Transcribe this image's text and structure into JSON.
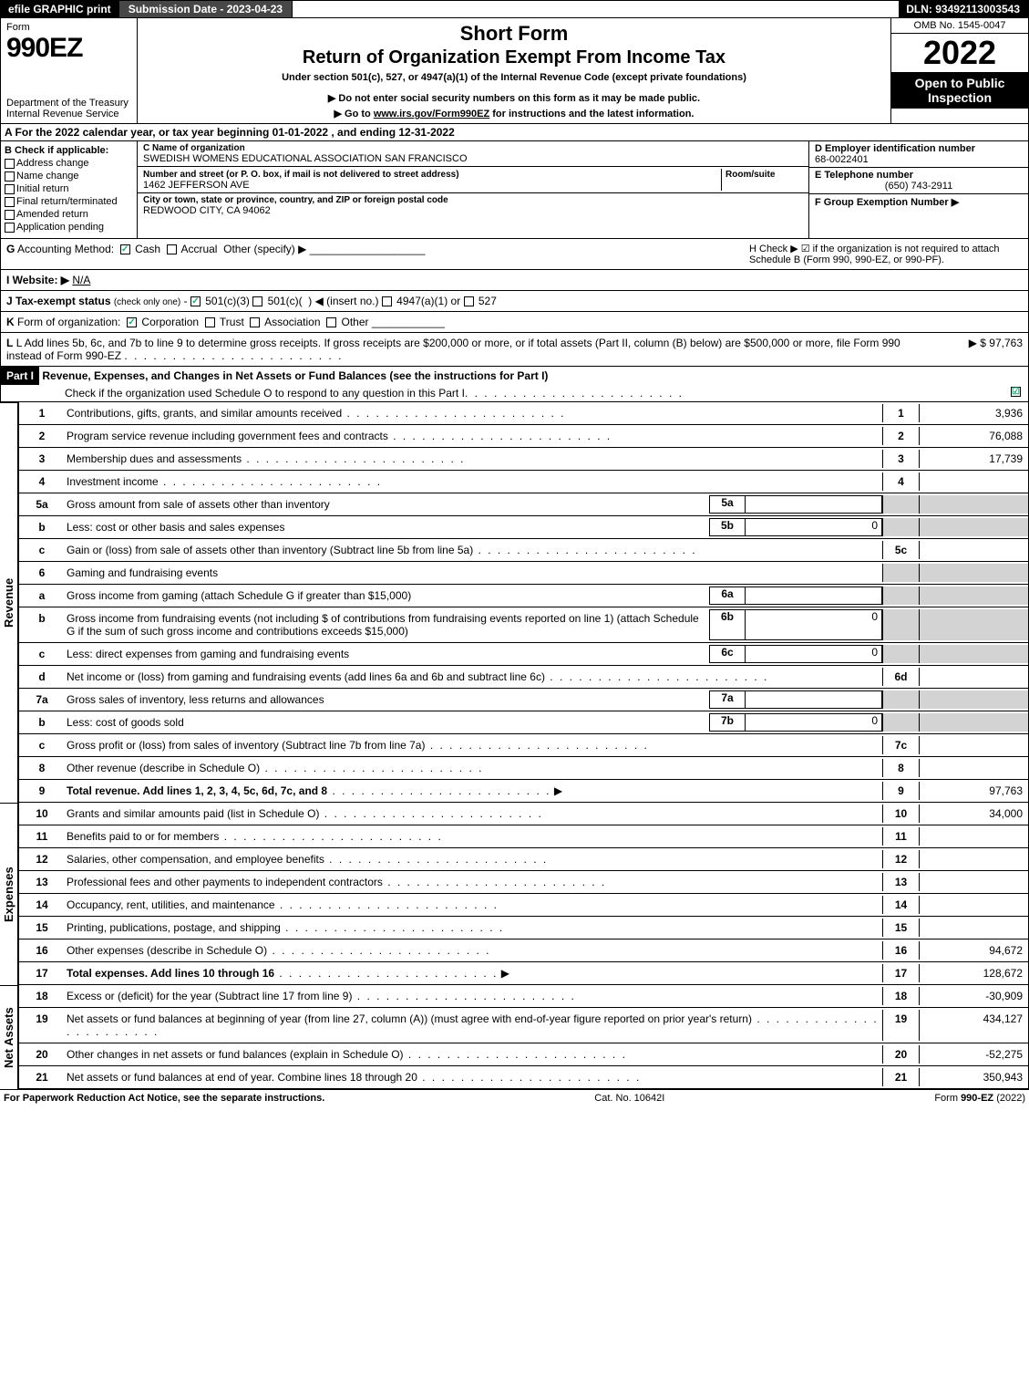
{
  "topbar": {
    "efile": "efile GRAPHIC print",
    "subdate": "Submission Date - 2023-04-23",
    "dln": "DLN: 93492113003543"
  },
  "header": {
    "form_label": "Form",
    "form_number": "990EZ",
    "dept": "Department of the Treasury\nInternal Revenue Service",
    "title": "Short Form",
    "subtitle": "Return of Organization Exempt From Income Tax",
    "under": "Under section 501(c), 527, or 4947(a)(1) of the Internal Revenue Code (except private foundations)",
    "notice1": "▶ Do not enter social security numbers on this form as it may be made public.",
    "notice2": "▶ Go to www.irs.gov/Form990EZ for instructions and the latest information.",
    "omb": "OMB No. 1545-0047",
    "year": "2022",
    "open": "Open to Public Inspection"
  },
  "A": "A  For the 2022 calendar year, or tax year beginning 01-01-2022  , and ending 12-31-2022",
  "B": {
    "label": "B  Check if applicable:",
    "items": [
      "Address change",
      "Name change",
      "Initial return",
      "Final return/terminated",
      "Amended return",
      "Application pending"
    ]
  },
  "C": {
    "name_lbl": "C Name of organization",
    "name": "SWEDISH WOMENS EDUCATIONAL ASSOCIATION SAN FRANCISCO",
    "addr_lbl": "Number and street (or P. O. box, if mail is not delivered to street address)",
    "room_lbl": "Room/suite",
    "addr": "1462 JEFFERSON AVE",
    "city_lbl": "City or town, state or province, country, and ZIP or foreign postal code",
    "city": "REDWOOD CITY, CA  94062"
  },
  "D": {
    "lbl": "D Employer identification number",
    "val": "68-0022401"
  },
  "E": {
    "lbl": "E Telephone number",
    "val": "(650) 743-2911"
  },
  "F": {
    "lbl": "F Group Exemption Number  ▶",
    "val": ""
  },
  "G": "G Accounting Method:   ☑ Cash  ☐ Accrual   Other (specify) ▶",
  "H": "H   Check ▶  ☑  if the organization is not required to attach Schedule B (Form 990, 990-EZ, or 990-PF).",
  "I": "I Website: ▶ N/A",
  "J": "J Tax-exempt status (check only one) - ☑ 501(c)(3) ☐ 501(c)(  ) ◀ (insert no.) ☐ 4947(a)(1) or ☐ 527",
  "K": "K Form of organization:   ☑ Corporation   ☐ Trust   ☐ Association   ☐ Other",
  "L": {
    "text": "L Add lines 5b, 6c, and 7b to line 9 to determine gross receipts. If gross receipts are $200,000 or more, or if total assets (Part II, column (B) below) are $500,000 or more, file Form 990 instead of Form 990-EZ",
    "amount": "▶ $ 97,763"
  },
  "part1": {
    "label": "Part I",
    "title": "Revenue, Expenses, and Changes in Net Assets or Fund Balances (see the instructions for Part I)",
    "check": "Check if the organization used Schedule O to respond to any question in this Part I",
    "checked": "☑"
  },
  "lines": [
    {
      "n": "1",
      "d": "Contributions, gifts, grants, and similar amounts received",
      "r": "1",
      "v": "3,936"
    },
    {
      "n": "2",
      "d": "Program service revenue including government fees and contracts",
      "r": "2",
      "v": "76,088"
    },
    {
      "n": "3",
      "d": "Membership dues and assessments",
      "r": "3",
      "v": "17,739"
    },
    {
      "n": "4",
      "d": "Investment income",
      "r": "4",
      "v": ""
    },
    {
      "n": "5a",
      "d": "Gross amount from sale of assets other than inventory",
      "sc": "5a",
      "sv": "",
      "r": "",
      "v": "",
      "grey": true
    },
    {
      "n": "b",
      "d": "Less: cost or other basis and sales expenses",
      "sc": "5b",
      "sv": "0",
      "r": "",
      "v": "",
      "grey": true
    },
    {
      "n": "c",
      "d": "Gain or (loss) from sale of assets other than inventory (Subtract line 5b from line 5a)",
      "r": "5c",
      "v": ""
    },
    {
      "n": "6",
      "d": "Gaming and fundraising events",
      "r": "",
      "v": "",
      "grey": true,
      "noline": true
    },
    {
      "n": "a",
      "d": "Gross income from gaming (attach Schedule G if greater than $15,000)",
      "sc": "6a",
      "sv": "",
      "r": "",
      "v": "",
      "grey": true
    },
    {
      "n": "b",
      "d": "Gross income from fundraising events (not including $               of contributions from fundraising events reported on line 1) (attach Schedule G if the sum of such gross income and contributions exceeds $15,000)",
      "sc": "6b",
      "sv": "0",
      "r": "",
      "v": "",
      "grey": true
    },
    {
      "n": "c",
      "d": "Less: direct expenses from gaming and fundraising events",
      "sc": "6c",
      "sv": "0",
      "r": "",
      "v": "",
      "grey": true
    },
    {
      "n": "d",
      "d": "Net income or (loss) from gaming and fundraising events (add lines 6a and 6b and subtract line 6c)",
      "r": "6d",
      "v": ""
    },
    {
      "n": "7a",
      "d": "Gross sales of inventory, less returns and allowances",
      "sc": "7a",
      "sv": "",
      "r": "",
      "v": "",
      "grey": true
    },
    {
      "n": "b",
      "d": "Less: cost of goods sold",
      "sc": "7b",
      "sv": "0",
      "r": "",
      "v": "",
      "grey": true
    },
    {
      "n": "c",
      "d": "Gross profit or (loss) from sales of inventory (Subtract line 7b from line 7a)",
      "r": "7c",
      "v": ""
    },
    {
      "n": "8",
      "d": "Other revenue (describe in Schedule O)",
      "r": "8",
      "v": ""
    },
    {
      "n": "9",
      "d": "Total revenue. Add lines 1, 2, 3, 4, 5c, 6d, 7c, and 8",
      "r": "9",
      "v": "97,763",
      "bold": true,
      "arrow": true
    }
  ],
  "exp_lines": [
    {
      "n": "10",
      "d": "Grants and similar amounts paid (list in Schedule O)",
      "r": "10",
      "v": "34,000"
    },
    {
      "n": "11",
      "d": "Benefits paid to or for members",
      "r": "11",
      "v": ""
    },
    {
      "n": "12",
      "d": "Salaries, other compensation, and employee benefits",
      "r": "12",
      "v": ""
    },
    {
      "n": "13",
      "d": "Professional fees and other payments to independent contractors",
      "r": "13",
      "v": ""
    },
    {
      "n": "14",
      "d": "Occupancy, rent, utilities, and maintenance",
      "r": "14",
      "v": ""
    },
    {
      "n": "15",
      "d": "Printing, publications, postage, and shipping",
      "r": "15",
      "v": ""
    },
    {
      "n": "16",
      "d": "Other expenses (describe in Schedule O)",
      "r": "16",
      "v": "94,672"
    },
    {
      "n": "17",
      "d": "Total expenses. Add lines 10 through 16",
      "r": "17",
      "v": "128,672",
      "bold": true,
      "arrow": true
    }
  ],
  "na_lines": [
    {
      "n": "18",
      "d": "Excess or (deficit) for the year (Subtract line 17 from line 9)",
      "r": "18",
      "v": "-30,909"
    },
    {
      "n": "19",
      "d": "Net assets or fund balances at beginning of year (from line 27, column (A)) (must agree with end-of-year figure reported on prior year's return)",
      "r": "19",
      "v": "434,127"
    },
    {
      "n": "20",
      "d": "Other changes in net assets or fund balances (explain in Schedule O)",
      "r": "20",
      "v": "-52,275"
    },
    {
      "n": "21",
      "d": "Net assets or fund balances at end of year. Combine lines 18 through 20",
      "r": "21",
      "v": "350,943"
    }
  ],
  "side_labels": {
    "rev": "Revenue",
    "exp": "Expenses",
    "na": "Net Assets"
  },
  "footer": {
    "left": "For Paperwork Reduction Act Notice, see the separate instructions.",
    "mid": "Cat. No. 10642I",
    "right": "Form 990-EZ (2022)"
  }
}
